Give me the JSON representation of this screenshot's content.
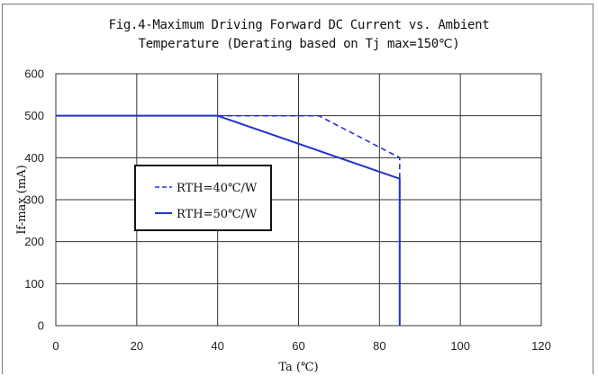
{
  "chart_data": {
    "type": "line",
    "title": "Fig.4-Maximum Driving Forward DC Current vs. Ambient",
    "subtitle": "Temperature (Derating based on Tj max=150℃)",
    "xlabel": "Ta (℃)",
    "ylabel": "If-max (mA)",
    "xlim": [
      0,
      120
    ],
    "ylim": [
      0,
      600
    ],
    "xticks": [
      0,
      20,
      40,
      60,
      80,
      100,
      120
    ],
    "yticks": [
      0,
      100,
      200,
      300,
      400,
      500,
      600
    ],
    "grid": true,
    "legend_position": "center-left",
    "series": [
      {
        "name": "RTH=40℃/W",
        "style": "dashed",
        "color": "#2233cc",
        "x": [
          0,
          65,
          85,
          85
        ],
        "y": [
          500,
          500,
          400,
          0
        ]
      },
      {
        "name": "RTH=50℃/W",
        "style": "solid",
        "color": "#2233cc",
        "x": [
          0,
          40,
          85,
          85
        ],
        "y": [
          500,
          500,
          350,
          0
        ]
      }
    ]
  }
}
